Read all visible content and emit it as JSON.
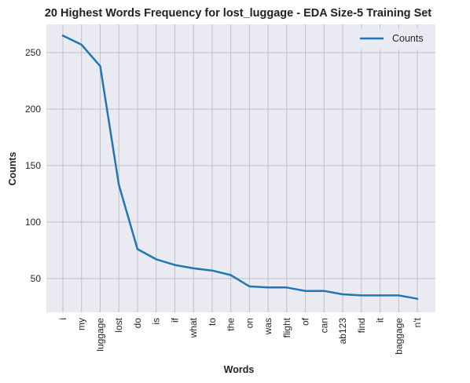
{
  "chart_data": {
    "type": "line",
    "title": "20 Highest Words Frequency for lost_luggage - EDA Size-5 Training Set",
    "xlabel": "Words",
    "ylabel": "Counts",
    "categories": [
      "i",
      "my",
      "luggage",
      "lost",
      "do",
      "is",
      "if",
      "what",
      "to",
      "the",
      "on",
      "was",
      "flight",
      "of",
      "can",
      "ab123",
      "find",
      "it",
      "baggage",
      "n't"
    ],
    "series": [
      {
        "name": "Counts",
        "values": [
          265,
          257,
          238,
          133,
          76,
          67,
          62,
          59,
          57,
          53,
          43,
          42,
          42,
          39,
          39,
          36,
          35,
          35,
          35,
          32
        ]
      }
    ],
    "yticks": [
      50,
      100,
      150,
      200,
      250
    ],
    "ylim": [
      20,
      275
    ],
    "grid": true,
    "legend": "top-right",
    "colors": {
      "line": "#1f77b4",
      "plot_bg": "#eaeaf2",
      "grid": "#c0c0c0"
    }
  }
}
